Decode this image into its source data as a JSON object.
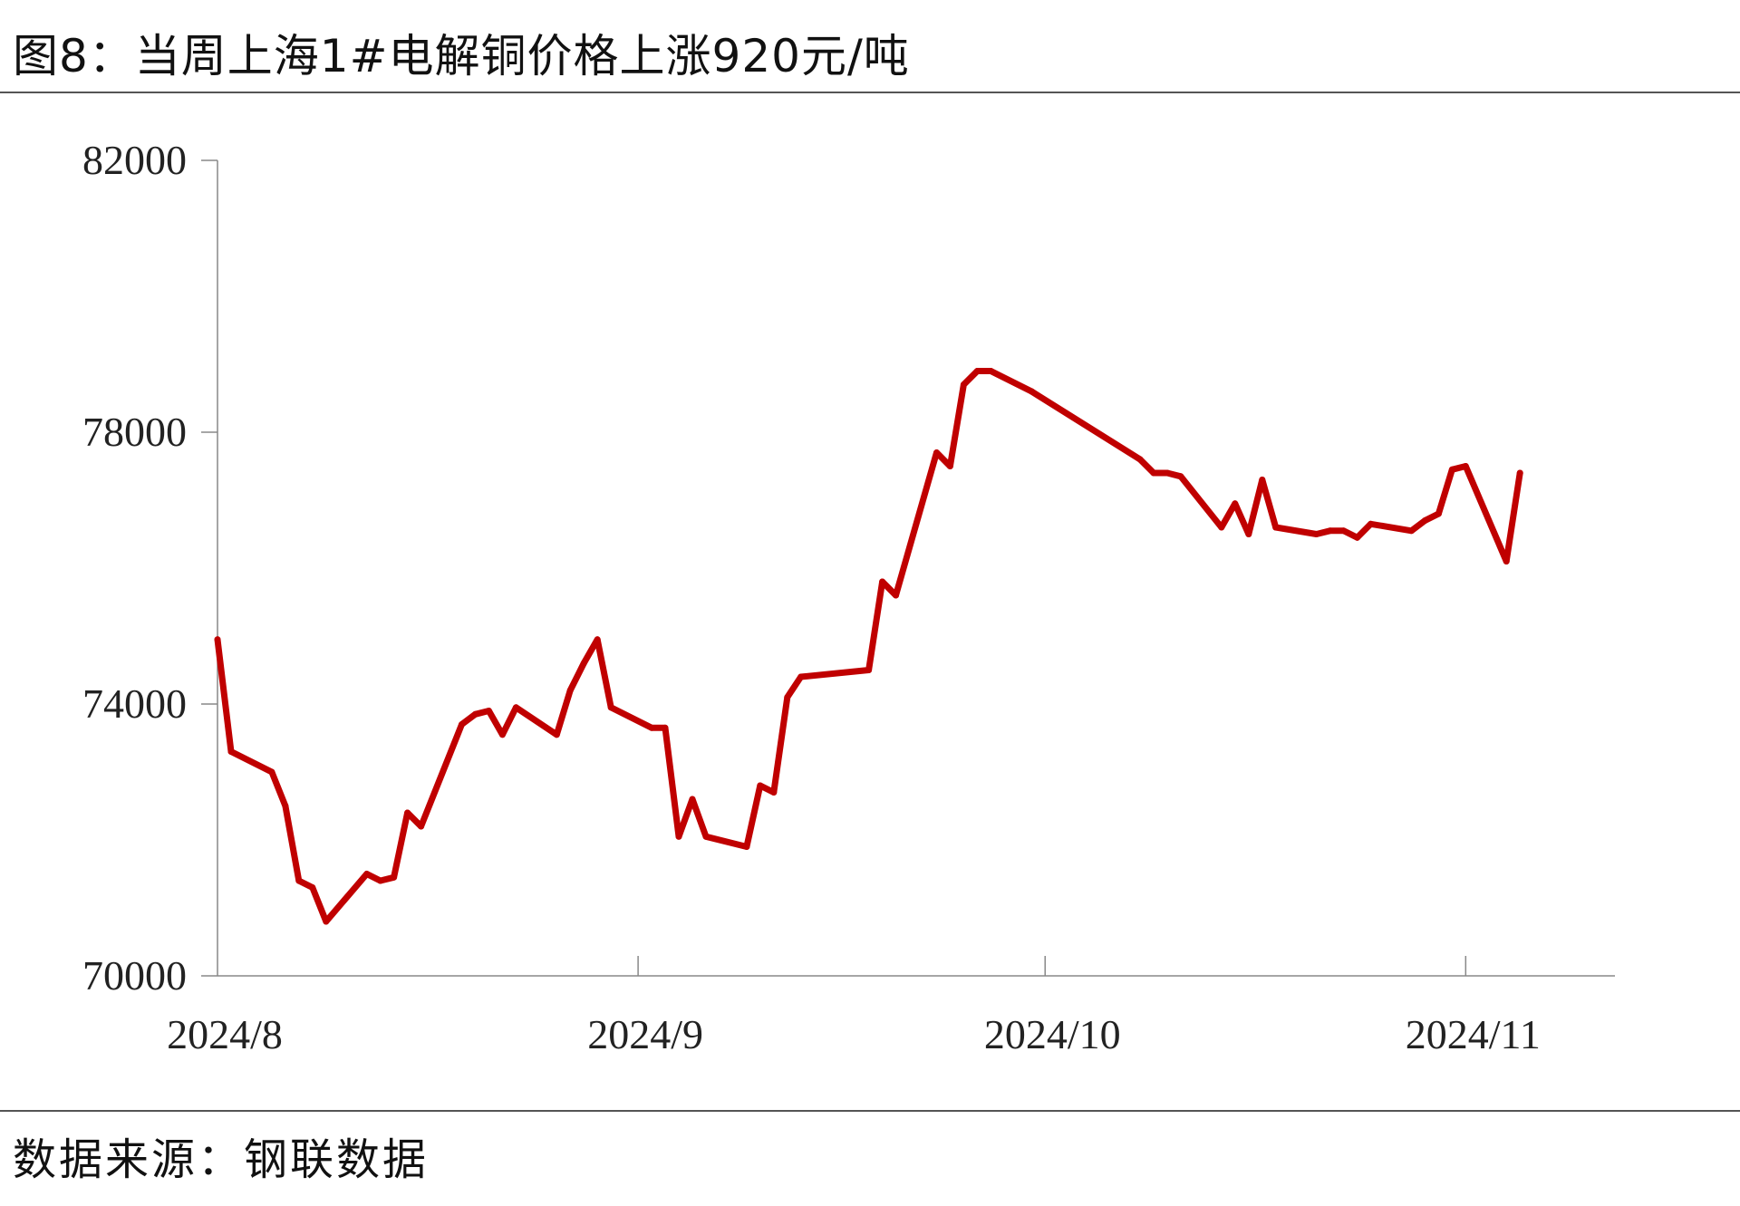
{
  "title": "图8：当周上海1#电解铜价格上涨920元/吨",
  "source": "数据来源：钢联数据",
  "chart_data": {
    "type": "line",
    "title": "图8：当周上海1#电解铜价格上涨920元/吨",
    "xlabel": "",
    "ylabel": "",
    "ylim": [
      70000,
      82000
    ],
    "yticks": [
      70000,
      74000,
      78000,
      82000
    ],
    "yticklabels": [
      "70000",
      "74000",
      "78000",
      "82000"
    ],
    "xlim": [
      "2024-08-01",
      "2024-11-12"
    ],
    "xticks": [
      "2024-08-01",
      "2024-09-01",
      "2024-10-01",
      "2024-11-01"
    ],
    "xticklabels": [
      "2024/8",
      "2024/9",
      "2024/10",
      "2024/11"
    ],
    "grid": false,
    "legend": "none",
    "series": [
      {
        "color": "#c00000",
        "x": [
          "2024-08-01",
          "2024-08-02",
          "2024-08-05",
          "2024-08-06",
          "2024-08-07",
          "2024-08-08",
          "2024-08-09",
          "2024-08-12",
          "2024-08-13",
          "2024-08-14",
          "2024-08-15",
          "2024-08-16",
          "2024-08-19",
          "2024-08-20",
          "2024-08-21",
          "2024-08-22",
          "2024-08-23",
          "2024-08-26",
          "2024-08-27",
          "2024-08-28",
          "2024-08-29",
          "2024-08-30",
          "2024-09-02",
          "2024-09-03",
          "2024-09-04",
          "2024-09-05",
          "2024-09-06",
          "2024-09-09",
          "2024-09-10",
          "2024-09-11",
          "2024-09-12",
          "2024-09-13",
          "2024-09-18",
          "2024-09-19",
          "2024-09-20",
          "2024-09-23",
          "2024-09-24",
          "2024-09-25",
          "2024-09-26",
          "2024-09-27",
          "2024-09-30",
          "2024-10-08",
          "2024-10-09",
          "2024-10-10",
          "2024-10-11",
          "2024-10-14",
          "2024-10-15",
          "2024-10-16",
          "2024-10-17",
          "2024-10-18",
          "2024-10-21",
          "2024-10-22",
          "2024-10-23",
          "2024-10-24",
          "2024-10-25",
          "2024-10-28",
          "2024-10-29",
          "2024-10-30",
          "2024-10-31",
          "2024-11-01",
          "2024-11-04",
          "2024-11-05",
          "2024-11-06",
          "2024-11-07",
          "2024-11-08"
        ],
        "y": [
          74950,
          73300,
          73000,
          72500,
          71400,
          71300,
          70800,
          71500,
          71400,
          71450,
          72400,
          72200,
          73700,
          73850,
          73900,
          73550,
          73950,
          73550,
          74200,
          74600,
          74950,
          73950,
          73650,
          73650,
          72050,
          72600,
          72050,
          71900,
          72800,
          72700,
          74100,
          74400,
          74500,
          75800,
          75600,
          77700,
          77500,
          78700,
          78900,
          78900,
          78600,
          77600,
          77400,
          77400,
          77350,
          76600,
          76950,
          76500,
          77300,
          76600,
          76500,
          76550,
          76550,
          76450,
          76650,
          76550,
          76700,
          76800,
          77450,
          77500,
          76100,
          77400,
          null,
          null,
          null
        ]
      }
    ]
  }
}
